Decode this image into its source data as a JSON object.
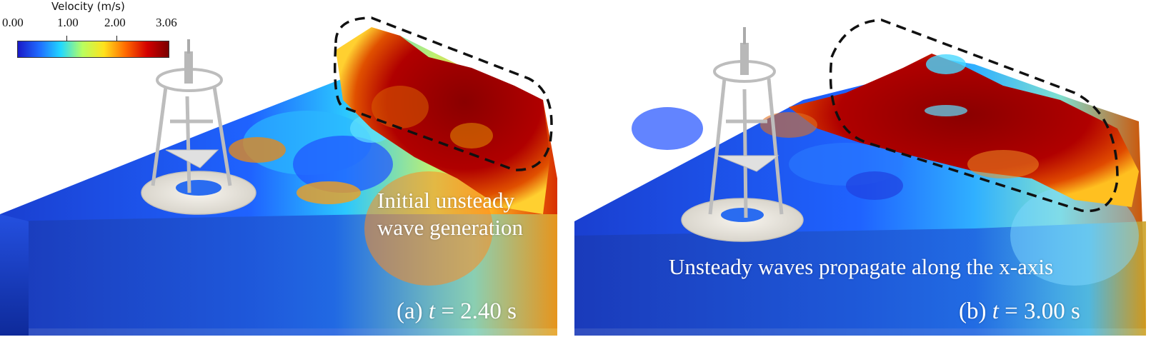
{
  "colorbar": {
    "title": "Velocity (m/s)",
    "ticks": [
      "0.00",
      "1.00",
      "2.00",
      "3.06"
    ],
    "colors": [
      "#1a1ac8",
      "#1f6cff",
      "#22d8ff",
      "#b8ff60",
      "#ffe21c",
      "#ff6a00",
      "#d40000",
      "#7a0000"
    ]
  },
  "panels": [
    {
      "label_prefix": "(a)",
      "time_symbol": "t",
      "time_value": "= 2.40 s",
      "annotation_lines": [
        "Initial unsteady",
        "wave generation"
      ]
    },
    {
      "label_prefix": "(b)",
      "time_symbol": "t",
      "time_value": "= 3.00 s",
      "annotation_lines": [
        "Unsteady waves propagate along the x-axis"
      ]
    }
  ]
}
